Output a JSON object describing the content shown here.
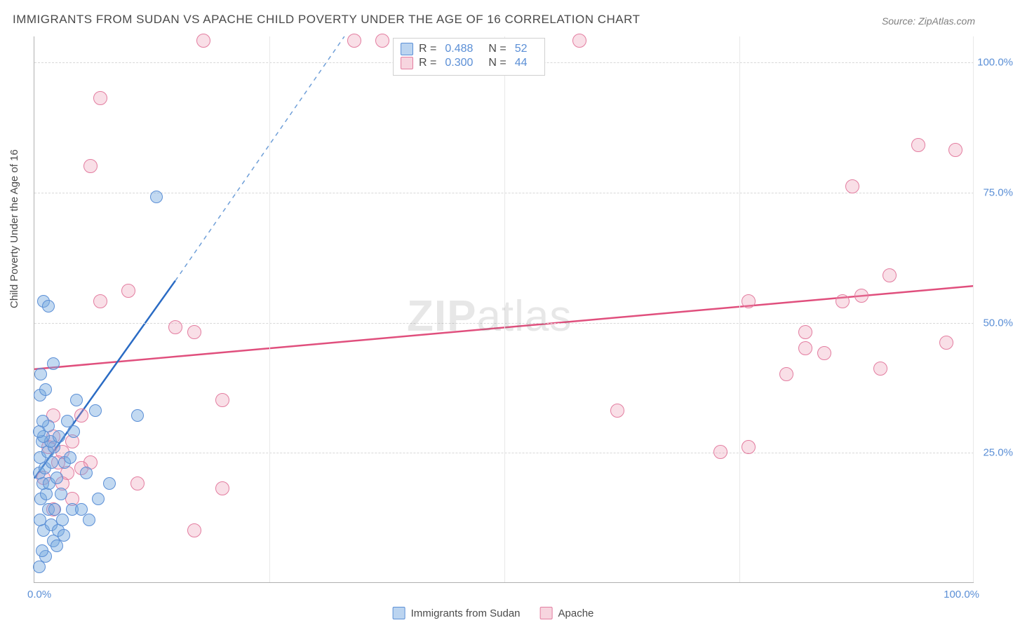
{
  "title": "IMMIGRANTS FROM SUDAN VS APACHE CHILD POVERTY UNDER THE AGE OF 16 CORRELATION CHART",
  "source": "Source: ZipAtlas.com",
  "y_axis_label": "Child Poverty Under the Age of 16",
  "watermark_bold": "ZIP",
  "watermark_rest": "atlas",
  "chart": {
    "type": "scatter",
    "xlim": [
      0,
      100
    ],
    "ylim": [
      0,
      105
    ],
    "x_ticks": {
      "start": "0.0%",
      "end": "100.0%"
    },
    "y_ticks": [
      {
        "value": 25,
        "label": "25.0%"
      },
      {
        "value": 50,
        "label": "50.0%"
      },
      {
        "value": 75,
        "label": "75.0%"
      },
      {
        "value": 100,
        "label": "100.0%"
      }
    ],
    "x_grid_values": [
      25,
      50,
      75
    ],
    "background_color": "#ffffff",
    "grid_color": "#d8d8d8",
    "axis_color": "#b0b0b0",
    "tick_label_color": "#5b8fd6",
    "marker_radius_blue": 9,
    "marker_radius_pink": 10
  },
  "series": {
    "blue": {
      "label": "Immigrants from Sudan",
      "color_fill": "rgba(120,170,225,0.45)",
      "color_stroke": "#5b8fd6",
      "R": "0.488",
      "N": "52",
      "trend": {
        "x1": 0,
        "y1": 20,
        "x2": 15,
        "y2": 58,
        "x2_dash": 33,
        "y2_dash": 105,
        "solid_color": "#2a6bc4",
        "dash_color": "#6f9fd8",
        "width": 2.5
      },
      "points": [
        [
          0.5,
          3
        ],
        [
          1.2,
          5
        ],
        [
          0.8,
          6
        ],
        [
          2.0,
          8
        ],
        [
          1.0,
          10
        ],
        [
          1.8,
          11
        ],
        [
          2.5,
          10
        ],
        [
          0.6,
          12
        ],
        [
          3.0,
          12
        ],
        [
          1.5,
          14
        ],
        [
          2.2,
          14
        ],
        [
          4.0,
          14
        ],
        [
          0.7,
          16
        ],
        [
          1.3,
          17
        ],
        [
          2.8,
          17
        ],
        [
          0.9,
          19
        ],
        [
          1.6,
          19
        ],
        [
          2.4,
          20
        ],
        [
          0.5,
          21
        ],
        [
          1.1,
          22
        ],
        [
          1.9,
          23
        ],
        [
          3.2,
          23
        ],
        [
          0.6,
          24
        ],
        [
          1.4,
          25
        ],
        [
          2.1,
          26
        ],
        [
          0.8,
          27
        ],
        [
          1.7,
          27
        ],
        [
          1.0,
          28
        ],
        [
          2.6,
          28
        ],
        [
          0.5,
          29
        ],
        [
          1.5,
          30
        ],
        [
          0.9,
          31
        ],
        [
          3.5,
          31
        ],
        [
          11,
          32
        ],
        [
          6.5,
          33
        ],
        [
          4.5,
          35
        ],
        [
          0.6,
          36
        ],
        [
          1.2,
          37
        ],
        [
          0.7,
          40
        ],
        [
          2.0,
          42
        ],
        [
          3.8,
          24
        ],
        [
          5.5,
          21
        ],
        [
          5.0,
          14
        ],
        [
          6.8,
          16
        ],
        [
          13,
          74
        ],
        [
          1.0,
          54
        ],
        [
          1.5,
          53
        ],
        [
          8,
          19
        ],
        [
          4.2,
          29
        ],
        [
          2.4,
          7
        ],
        [
          3.1,
          9
        ],
        [
          5.8,
          12
        ]
      ]
    },
    "pink": {
      "label": "Apache",
      "color_fill": "rgba(235,150,175,0.30)",
      "color_stroke": "#e37da0",
      "R": "0.300",
      "N": "44",
      "trend": {
        "x1": 0,
        "y1": 41,
        "x2": 100,
        "y2": 57,
        "solid_color": "#e04f7d",
        "width": 2.5
      },
      "points": [
        [
          7,
          93
        ],
        [
          18,
          104
        ],
        [
          34,
          104
        ],
        [
          37,
          104
        ],
        [
          58,
          104
        ],
        [
          6,
          80
        ],
        [
          10,
          56
        ],
        [
          7,
          54
        ],
        [
          15,
          49
        ],
        [
          17,
          48
        ],
        [
          20,
          35
        ],
        [
          11,
          19
        ],
        [
          20,
          18
        ],
        [
          17,
          10
        ],
        [
          2,
          32
        ],
        [
          5,
          32
        ],
        [
          1.5,
          26
        ],
        [
          3,
          25
        ],
        [
          4,
          27
        ],
        [
          2.5,
          23
        ],
        [
          6,
          23
        ],
        [
          3.5,
          21
        ],
        [
          73,
          25
        ],
        [
          76,
          26
        ],
        [
          62,
          33
        ],
        [
          76,
          54
        ],
        [
          80,
          40
        ],
        [
          82,
          45
        ],
        [
          82,
          48
        ],
        [
          84,
          44
        ],
        [
          86,
          54
        ],
        [
          87,
          76
        ],
        [
          88,
          55
        ],
        [
          90,
          41
        ],
        [
          91,
          59
        ],
        [
          94,
          84
        ],
        [
          97,
          46
        ],
        [
          98,
          83
        ],
        [
          2,
          14
        ],
        [
          4,
          16
        ],
        [
          1,
          20
        ],
        [
          3,
          19
        ],
        [
          5,
          22
        ],
        [
          2,
          28
        ]
      ]
    }
  },
  "legend_top": {
    "r_label": "R  =",
    "n_label": "N  ="
  },
  "legend_bottom": {}
}
